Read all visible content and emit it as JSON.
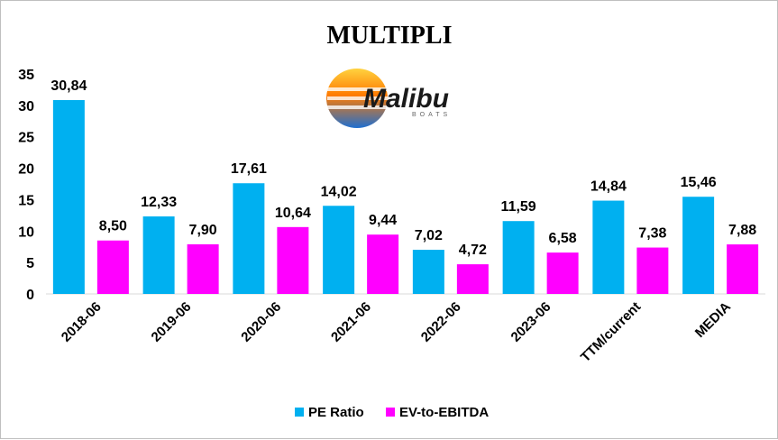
{
  "chart_data": {
    "type": "bar",
    "title": "MULTIPLI",
    "categories": [
      "2018-06",
      "2019-06",
      "2020-06",
      "2021-06",
      "2022-06",
      "2023-06",
      "TTM/current",
      "MEDIA"
    ],
    "series": [
      {
        "name": "PE Ratio",
        "color": "#00b0f0",
        "values": [
          30.84,
          12.33,
          17.61,
          14.02,
          7.02,
          11.59,
          14.84,
          15.46
        ],
        "labels": [
          "30,84",
          "12,33",
          "17,61",
          "14,02",
          "7,02",
          "11,59",
          "14,84",
          "15,46"
        ]
      },
      {
        "name": "EV-to-EBITDA",
        "color": "#ff00ff",
        "values": [
          8.5,
          7.9,
          10.64,
          9.44,
          4.72,
          6.58,
          7.38,
          7.88
        ],
        "labels": [
          "8,50",
          "7,90",
          "10,64",
          "9,44",
          "4,72",
          "6,58",
          "7,38",
          "7,88"
        ]
      }
    ],
    "ylim": [
      0,
      35
    ],
    "yticks": [
      0,
      5,
      10,
      15,
      20,
      25,
      30,
      35
    ],
    "grid": false,
    "legend_position": "bottom"
  },
  "logo": {
    "text": "Malibu",
    "subtext": "BOATS"
  }
}
